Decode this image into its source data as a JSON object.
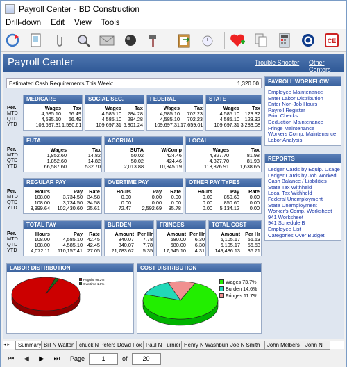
{
  "window": {
    "title": "Payroll Center - BD Construction"
  },
  "menu": [
    "Drill-down",
    "Edit",
    "View",
    "Tools"
  ],
  "toolbar": [
    "refresh-icon",
    "new-doc-icon",
    "attach-icon",
    "find-icon",
    "mail-icon",
    "ball-icon",
    "hammer-icon",
    "separator",
    "clipboard-icon",
    "timer-icon",
    "separator",
    "heart-icon",
    "pages-icon",
    "calculator-icon",
    "help-q-icon",
    "ce-icon"
  ],
  "banner": {
    "title": "Payroll Center",
    "link1": "Trouble Shooter",
    "link2": "Other Centers"
  },
  "cash": {
    "label": "Estimated Cash Requirements This Week:",
    "value": "1,320.00"
  },
  "rows": [
    "Per.",
    "MTD",
    "QTD",
    "YTD"
  ],
  "medicare": {
    "title": "MEDICARE",
    "h1": "Wages",
    "h2": "Tax",
    "c1": [
      "4,585.10",
      "4,585.10",
      "109,697.31"
    ],
    "c2": [
      "66.49",
      "66.49",
      "1,590.61"
    ]
  },
  "social": {
    "title": "SOCIAL SEC.",
    "h1": "Wages",
    "h2": "Tax",
    "c1": [
      "4,585.10",
      "4,585.10",
      "109,697.31"
    ],
    "c2": [
      "284.28",
      "284.28",
      "6,801.24"
    ]
  },
  "federal": {
    "title": "FEDERAL",
    "h1": "Wages",
    "h2": "Tax",
    "c1": [
      "4,585.10",
      "4,585.10",
      "109,697.31"
    ],
    "c2": [
      "702.23",
      "702.23",
      "17,659.01"
    ]
  },
  "state": {
    "title": "STATE",
    "h1": "Wages",
    "h2": "Tax",
    "c1": [
      "4,585.10",
      "4,585.10",
      "109,697.31"
    ],
    "c2": [
      "123.32",
      "123.32",
      "3,283.08"
    ]
  },
  "futa": {
    "title": "FUTA",
    "h1": "Wages",
    "h2": "Tax",
    "c1": [
      "1,852.60",
      "1,852.60",
      "66,587.60"
    ],
    "c2": [
      "14.82",
      "14.82",
      "532.70"
    ]
  },
  "accrual": {
    "title": "ACCRUAL",
    "h1": "SUTA",
    "h2": "W/Comp",
    "c1": [
      "50.02",
      "50.02",
      "2,013.88"
    ],
    "c2": [
      "424.46",
      "424.46",
      "10,845.19"
    ]
  },
  "local": {
    "title": "LOCAL",
    "h1": "Wages",
    "h2": "Tax",
    "c1": [
      "4,827.70",
      "4,827.70",
      "113,876.91"
    ],
    "c2": [
      "81.98",
      "81.98",
      "1,638.65"
    ]
  },
  "regular": {
    "title": "REGULAR PAY",
    "h1": "Hours",
    "h2": "Pay",
    "h3": "Rate",
    "c1": [
      "108.00",
      "108.00",
      "3,999.64"
    ],
    "c2": [
      "3,734.50",
      "3,734.50",
      "102,430.60"
    ],
    "c3": [
      "34.58",
      "34.58",
      "25.61"
    ]
  },
  "overtime": {
    "title": "OVERTIME PAY",
    "h1": "Hours",
    "h2": "Pay",
    "h3": "Rate",
    "c1": [
      "0.00",
      "0.00",
      "72.47"
    ],
    "c2": [
      "0.00",
      "0.00",
      "2,592.69"
    ],
    "c3": [
      "0.00",
      "0.00",
      "35.78"
    ]
  },
  "otherpay": {
    "title": "OTHER PAY TYPES",
    "h1": "Hours",
    "h2": "Pay",
    "h3": "Rate",
    "c1": [
      "0.00",
      "0.00",
      "0.00"
    ],
    "c2": [
      "850.60",
      "850.60",
      "5,134.12"
    ],
    "c3": [
      "0.00",
      "0.00",
      "0.00"
    ]
  },
  "totalpay": {
    "title": "TOTAL PAY",
    "h1": "Hours",
    "h2": "Pay",
    "h3": "Rate",
    "c1": [
      "108.00",
      "108.00",
      "4,072.11"
    ],
    "c2": [
      "4,585.10",
      "4,585.10",
      "110,157.41"
    ],
    "c3": [
      "42.45",
      "42.45",
      "27.05"
    ]
  },
  "burden": {
    "title": "BURDEN",
    "h1": "Amount",
    "h2": "Per Hr",
    "c1": [
      "840.07",
      "840.07",
      "21,783.62"
    ],
    "c2": [
      "7.78",
      "7.78",
      "5.35"
    ]
  },
  "fringes": {
    "title": "FRINGES",
    "h1": "Amount",
    "h2": "Per Hr",
    "c1": [
      "680.00",
      "680.00",
      "17,545.10"
    ],
    "c2": [
      "6.30",
      "6.30",
      "4.31"
    ]
  },
  "totalcost": {
    "title": "TOTAL COST",
    "h1": "Amount",
    "h2": "Per Hr",
    "c1": [
      "6,105.17",
      "6,105.17",
      "149,486.13"
    ],
    "c2": [
      "56.53",
      "56.53",
      "36.71"
    ]
  },
  "workflow": {
    "title": "PAYROLL WORKFLOW",
    "items": [
      "Employee Maintenance",
      "Enter Labor Distribution",
      "Enter Non-Job Hours",
      "Payroll Register",
      "Print Checks",
      "Deduction Maintenance",
      "Fringe Maintenance",
      "Workers Comp. Maintenance",
      "Labor Analysis"
    ]
  },
  "reports": {
    "title": "REPORTS",
    "items": [
      "Ledger Cards by Equip. Usage",
      "Ledger Cards by Job Worked",
      "Cash Balance / Liabilities",
      "State Tax Withheld",
      "Local Tax Withheld",
      "Federal Unemployment",
      "State Unemployment",
      "Worker's Comp. Worksheet",
      "941 Worksheet",
      "941 Schedule B",
      "Employee List",
      "Categories Over Budget"
    ]
  },
  "chart_data": [
    {
      "type": "pie",
      "title": "LABOR DISTRIBUTION",
      "categories": [
        "Regular",
        "Overtime"
      ],
      "values": [
        98.2,
        1.8
      ],
      "labels": [
        "Regular 98.2%",
        "Overtime 1.8%"
      ],
      "colors": [
        "#cc0000",
        "#1a6e1a"
      ]
    },
    {
      "type": "pie",
      "title": "COST DISTRIBUTION",
      "categories": [
        "Wages",
        "Burden",
        "Fringes"
      ],
      "values": [
        73.7,
        14.6,
        11.7
      ],
      "labels": [
        "Wages 73.7%",
        "Burden 14.6%",
        "Fringes 11.7%"
      ],
      "colors": [
        "#22ee00",
        "#22d8b8",
        "#f09090"
      ]
    }
  ],
  "tabs": [
    "Summary",
    "Bill N Walton",
    "chuck N Peters",
    "Dowd Fox",
    "Paul N Furnier",
    "Henry N Washburn",
    "Joe N Smith",
    "John Melbers",
    "John N"
  ],
  "pager": {
    "label": "Page",
    "page": "1",
    "of": "of",
    "total": "20"
  }
}
